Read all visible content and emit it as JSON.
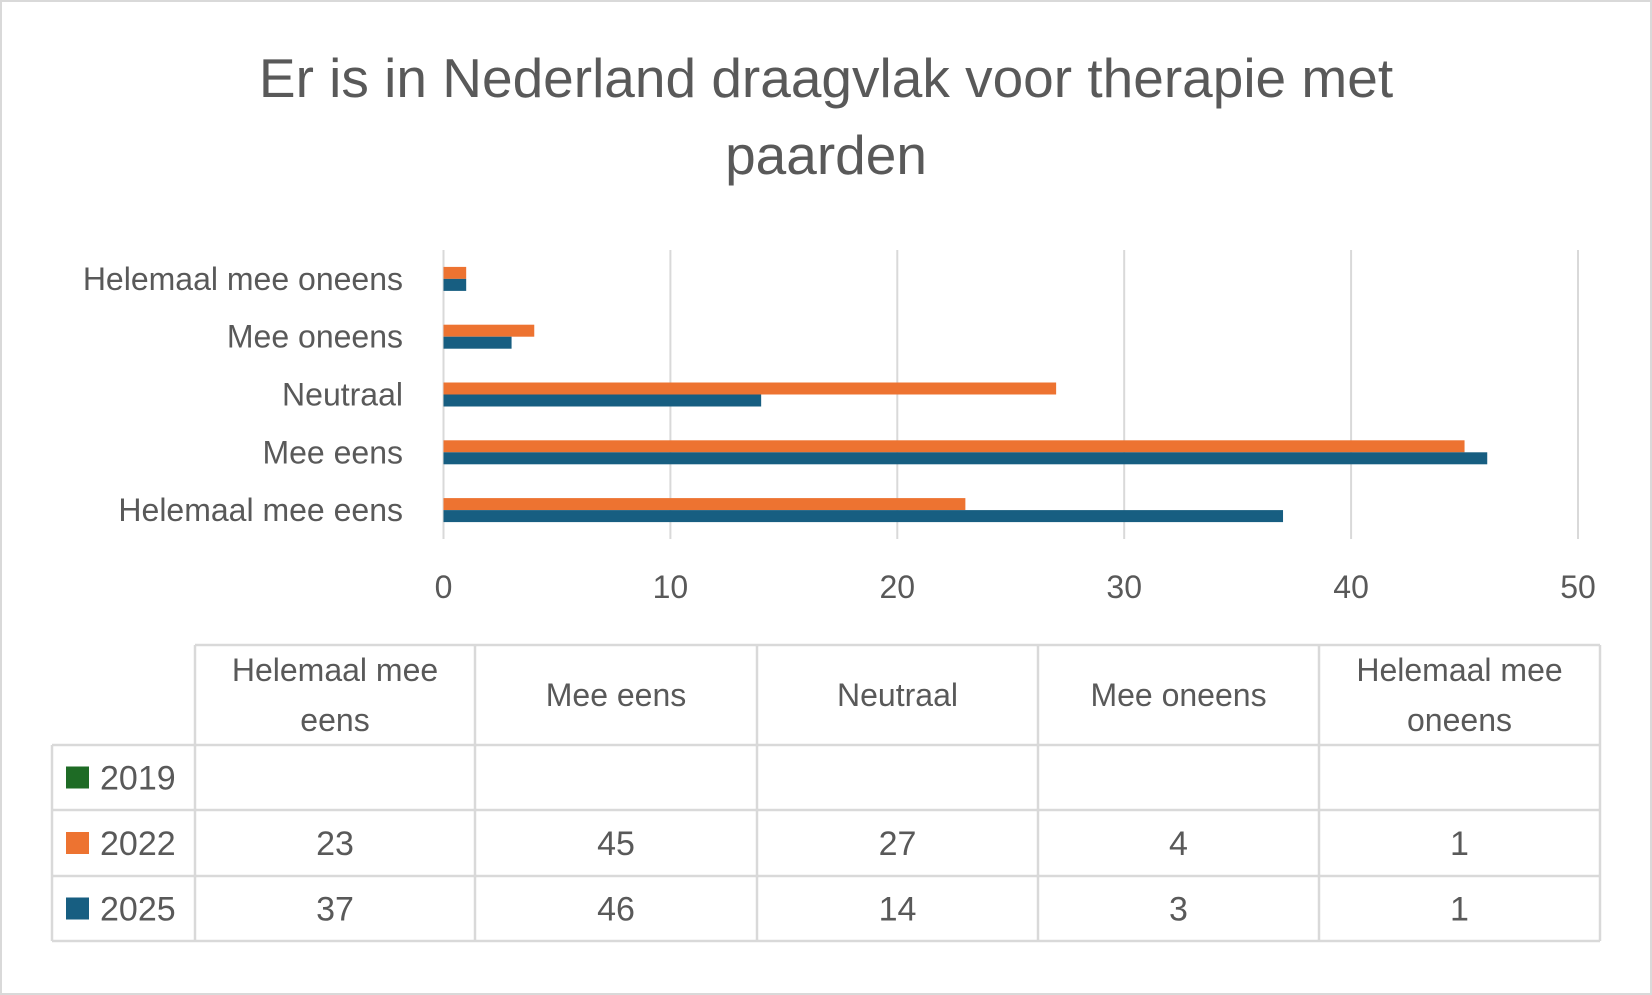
{
  "chart_data": {
    "type": "bar",
    "orientation": "horizontal",
    "title": "Er is in Nederland draagvlak voor therapie met paarden",
    "title_lines": [
      "Er is in Nederland draagvlak voor therapie met",
      "paarden"
    ],
    "categories": [
      "Helemaal mee eens",
      "Mee eens",
      "Neutraal",
      "Mee oneens",
      "Helemaal mee oneens"
    ],
    "table_headers": [
      [
        "Helemaal mee",
        "eens"
      ],
      [
        "Mee eens"
      ],
      [
        "Neutraal"
      ],
      [
        "Mee oneens"
      ],
      [
        "Helemaal mee",
        "oneens"
      ]
    ],
    "series": [
      {
        "name": "2019",
        "color": "#1e6b25",
        "values": [
          null,
          null,
          null,
          null,
          null
        ]
      },
      {
        "name": "2022",
        "color": "#ed7331",
        "values": [
          23,
          45,
          27,
          4,
          1
        ]
      },
      {
        "name": "2025",
        "color": "#175e81",
        "values": [
          37,
          46,
          14,
          3,
          1
        ]
      }
    ],
    "xlim": [
      0,
      50
    ],
    "xticks": [
      0,
      10,
      20,
      30,
      40,
      50
    ],
    "grid": true,
    "legend": "data-table-below"
  }
}
